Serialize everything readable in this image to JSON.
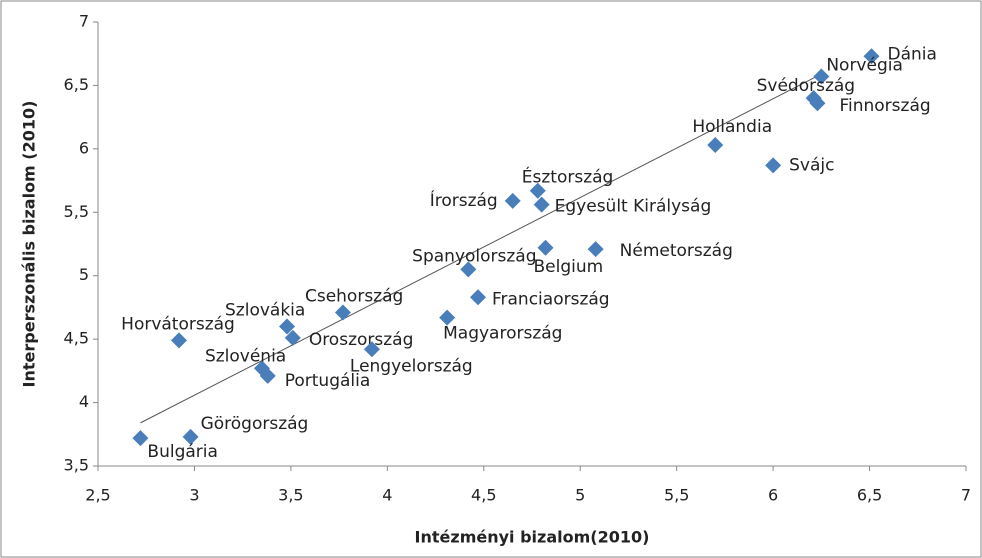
{
  "chart_data": {
    "type": "scatter",
    "x_label": "Intézményi bizalom(2010)",
    "y_label": "Interperszonális bizalom (2010)",
    "color": "#4a7ebb",
    "trendline_color": "#555555",
    "labels": [
      "Dánia",
      "Norvégia",
      "Svédország",
      "Finnország",
      "Hollandia",
      "Svájc",
      "Észtország",
      "Írország",
      "Egyesült Királyság",
      "Belgium",
      "Németország",
      "Spanyolország",
      "Franciaország",
      "Csehország",
      "Magyarország",
      "Szlovákia",
      "Oroszország",
      "Horvátország",
      "Lengyelország",
      "Szlovénia",
      "Portugália",
      "Görögország",
      "Bulgária"
    ],
    "x": [
      6.51,
      6.25,
      6.21,
      6.23,
      5.7,
      6.0,
      4.78,
      4.65,
      4.8,
      4.82,
      5.08,
      4.42,
      4.47,
      3.77,
      4.31,
      3.48,
      3.51,
      2.92,
      3.92,
      3.35,
      3.38,
      2.98,
      2.72
    ],
    "values": [
      6.73,
      6.57,
      6.4,
      6.36,
      6.03,
      5.87,
      5.67,
      5.59,
      5.56,
      5.22,
      5.21,
      5.05,
      4.83,
      4.71,
      4.67,
      4.6,
      4.51,
      4.49,
      4.42,
      4.27,
      4.21,
      3.73,
      3.72
    ],
    "trendline": {
      "x": [
        2.72,
        6.25
      ],
      "y": [
        3.84,
        6.59
      ]
    },
    "xlim": [
      2.5,
      7
    ],
    "ylim": [
      3.5,
      7
    ],
    "xticks": [
      {
        "value": 2.5,
        "label": "2,5"
      },
      3,
      {
        "value": 3.5,
        "label": "3,5"
      },
      4,
      {
        "value": 4.5,
        "label": "4,5"
      },
      5,
      {
        "value": 5.5,
        "label": "5,5"
      },
      6,
      {
        "value": 6.5,
        "label": "6,5"
      },
      7
    ],
    "yticks": [
      {
        "value": 3.5,
        "label": "3,5"
      },
      4,
      {
        "value": 4.5,
        "label": "4,5"
      },
      5,
      {
        "value": 5.5,
        "label": "5,5"
      },
      6,
      {
        "value": 6.5,
        "label": "6,5"
      },
      7
    ],
    "grid": false
  }
}
